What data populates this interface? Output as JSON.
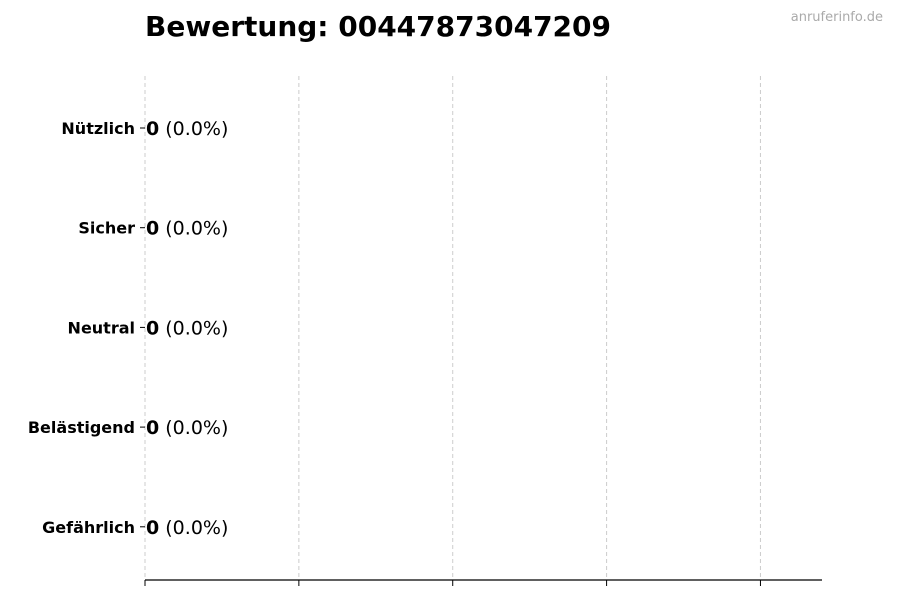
{
  "watermark": "anruferinfo.de",
  "chart_data": {
    "type": "bar",
    "orientation": "horizontal",
    "title": "Bewertung: 004478730472 09",
    "categories": [
      "Nützlich",
      "Sicher",
      "Neutral",
      "Belästigend",
      "Gefährlich"
    ],
    "values": [
      0,
      0,
      0,
      0,
      0
    ],
    "value_labels": [
      "0",
      "0",
      "0",
      "0",
      "0"
    ],
    "percent_labels": [
      "(0.0%)",
      "(0.0%)",
      "(0.0%)",
      "(0.0%)",
      "(0.0%)"
    ],
    "xlim": [
      0,
      4.4
    ],
    "xticks": [
      0,
      1,
      2,
      3,
      4
    ],
    "xtick_labels_shown": false,
    "grid": "x, dashed",
    "xlabel": "",
    "ylabel": "",
    "bar_edge_color": "#000000",
    "grid_color": "#cccccc"
  }
}
